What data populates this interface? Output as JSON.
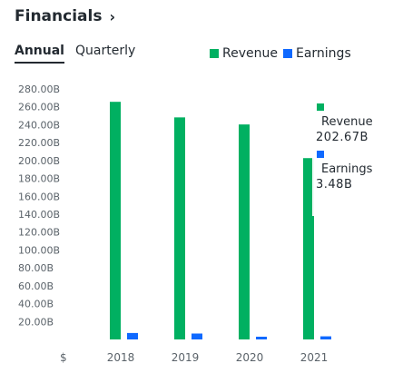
{
  "header": {
    "title": "Financials",
    "chevron": "›"
  },
  "tabs": [
    {
      "label": "Annual",
      "active": true
    },
    {
      "label": "Quarterly",
      "active": false
    }
  ],
  "legend": [
    {
      "label": "Revenue",
      "color": "#00b061"
    },
    {
      "label": "Earnings",
      "color": "#0f69ff"
    }
  ],
  "tooltip": {
    "revenue_label": "Revenue",
    "revenue_value": "202.67B",
    "earnings_label": "Earnings",
    "earnings_value": "3.48B"
  },
  "chart_data": {
    "type": "bar",
    "categories": [
      "2018",
      "2019",
      "2020",
      "2021"
    ],
    "series": [
      {
        "name": "Revenue",
        "values": [
          265.6,
          248.2,
          240.3,
          202.67
        ],
        "color": "#00b061"
      },
      {
        "name": "Earnings",
        "values": [
          7.2,
          6.6,
          2.0,
          3.48
        ],
        "color": "#0f69ff"
      }
    ],
    "ylim": [
      0,
      280
    ],
    "y_ticks": [
      "280.00B",
      "260.00B",
      "240.00B",
      "220.00B",
      "200.00B",
      "180.00B",
      "160.00B",
      "140.00B",
      "120.00B",
      "100.00B",
      "80.00B",
      "60.00B",
      "40.00B",
      "20.00B"
    ],
    "y_tick_values": [
      280,
      260,
      240,
      220,
      200,
      180,
      160,
      140,
      120,
      100,
      80,
      60,
      40,
      20
    ],
    "currency_symbol": "$"
  }
}
